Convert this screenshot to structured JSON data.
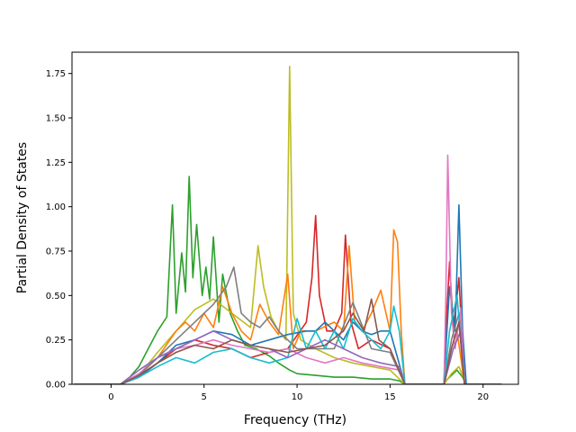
{
  "chart_data": {
    "type": "line",
    "title": "",
    "xlabel": "Frequency (THz)",
    "ylabel": "Partial Density of States",
    "xlim": [
      -2.1,
      21.9
    ],
    "ylim": [
      0,
      1.87
    ],
    "xticks": [
      0,
      5,
      10,
      15,
      20
    ],
    "yticks": [
      0.0,
      0.25,
      0.5,
      0.75,
      1.0,
      1.25,
      1.5,
      1.75
    ],
    "xtick_labels": [
      "0",
      "5",
      "10",
      "15",
      "20"
    ],
    "ytick_labels": [
      "0.00",
      "0.25",
      "0.50",
      "0.75",
      "1.00",
      "1.25",
      "1.50",
      "1.75"
    ],
    "grid": false,
    "legend": "none",
    "series": [
      {
        "color": "#2ca02c",
        "x": [
          -2,
          0.5,
          1,
          1.5,
          2,
          2.5,
          3,
          3.3,
          3.5,
          3.8,
          4,
          4.2,
          4.4,
          4.6,
          4.9,
          5.1,
          5.3,
          5.5,
          5.8,
          6,
          6.4,
          6.8,
          7.2,
          7.8,
          8.5,
          9,
          9.6,
          10,
          11,
          12,
          13,
          14,
          15,
          15.5,
          15.8,
          17.9,
          18,
          18.3,
          18.6,
          18.9,
          19.1,
          21
        ],
        "y": [
          0,
          0,
          0.04,
          0.1,
          0.2,
          0.3,
          0.38,
          1.01,
          0.4,
          0.74,
          0.52,
          1.17,
          0.6,
          0.9,
          0.5,
          0.66,
          0.48,
          0.83,
          0.35,
          0.62,
          0.4,
          0.3,
          0.22,
          0.2,
          0.16,
          0.12,
          0.08,
          0.06,
          0.05,
          0.04,
          0.04,
          0.03,
          0.03,
          0.02,
          0,
          0,
          0.02,
          0.05,
          0.08,
          0.04,
          0,
          0
        ]
      },
      {
        "color": "#bcbd22",
        "x": [
          -2,
          0.5,
          1.5,
          2.5,
          3.5,
          4.5,
          5.5,
          6.5,
          7.5,
          7.9,
          8.2,
          8.6,
          9,
          9.4,
          9.6,
          9.8,
          10.2,
          11,
          12,
          13,
          14,
          15,
          15.8,
          17.9,
          18.3,
          18.7,
          19.1,
          21
        ],
        "y": [
          0,
          0,
          0.05,
          0.18,
          0.3,
          0.42,
          0.48,
          0.4,
          0.32,
          0.78,
          0.55,
          0.38,
          0.3,
          0.25,
          1.79,
          0.4,
          0.25,
          0.2,
          0.15,
          0.12,
          0.1,
          0.08,
          0,
          0,
          0.06,
          0.1,
          0,
          0
        ]
      },
      {
        "color": "#d62728",
        "x": [
          -2,
          0.5,
          1.5,
          2.5,
          3.5,
          4.5,
          5.5,
          6.5,
          7.5,
          8.5,
          9.5,
          10.5,
          10.8,
          11,
          11.2,
          11.6,
          12,
          12.4,
          12.6,
          12.9,
          13.3,
          14,
          15,
          15.8,
          17.9,
          18,
          18.2,
          18.4,
          18.7,
          19,
          21
        ],
        "y": [
          0,
          0,
          0.04,
          0.12,
          0.2,
          0.25,
          0.22,
          0.2,
          0.15,
          0.18,
          0.2,
          0.35,
          0.6,
          0.95,
          0.5,
          0.3,
          0.3,
          0.4,
          0.84,
          0.35,
          0.2,
          0.25,
          0.2,
          0,
          0,
          0.3,
          0.69,
          0.3,
          0.6,
          0,
          0
        ]
      },
      {
        "color": "#ff7f0e",
        "x": [
          -2,
          0.5,
          1.5,
          2.5,
          3.5,
          4,
          4.5,
          5,
          5.5,
          6,
          6.5,
          7,
          7.5,
          8,
          8.5,
          9,
          9.5,
          9.8,
          10.2,
          11,
          12,
          12.5,
          12.8,
          13.1,
          13.5,
          14,
          14.5,
          15,
          15.2,
          15.4,
          15.6,
          15.8,
          17.9,
          18.3,
          18.6,
          19,
          21
        ],
        "y": [
          0,
          0,
          0.05,
          0.15,
          0.3,
          0.35,
          0.3,
          0.4,
          0.32,
          0.55,
          0.4,
          0.3,
          0.25,
          0.45,
          0.35,
          0.28,
          0.62,
          0.2,
          0.3,
          0.3,
          0.35,
          0.3,
          0.78,
          0.35,
          0.3,
          0.4,
          0.53,
          0.3,
          0.87,
          0.8,
          0.3,
          0,
          0,
          0.2,
          0.3,
          0,
          0
        ]
      },
      {
        "color": "#1f77b4",
        "x": [
          -2,
          0.5,
          1.5,
          2.5,
          3.5,
          4.5,
          5.5,
          6.5,
          7.5,
          8.5,
          9.5,
          10.5,
          11,
          11.5,
          12,
          12.5,
          13,
          13.5,
          14,
          14.5,
          15,
          15.8,
          17.9,
          18,
          18.2,
          18.5,
          18.7,
          18.9,
          19.1,
          21
        ],
        "y": [
          0,
          0,
          0.04,
          0.12,
          0.22,
          0.25,
          0.3,
          0.28,
          0.22,
          0.25,
          0.28,
          0.3,
          0.3,
          0.35,
          0.3,
          0.25,
          0.35,
          0.3,
          0.28,
          0.3,
          0.3,
          0,
          0,
          0.2,
          0.55,
          0.3,
          1.01,
          0.3,
          0,
          0
        ]
      },
      {
        "color": "#e377c2",
        "x": [
          -2,
          0.5,
          1.5,
          2.5,
          3.5,
          4.5,
          5.5,
          6.5,
          7.5,
          8.5,
          9.5,
          10.5,
          11.5,
          12.5,
          13.5,
          14.5,
          15.5,
          15.8,
          17.9,
          18,
          18.1,
          18.3,
          18.5,
          18.8,
          19,
          21
        ],
        "y": [
          0,
          0,
          0.06,
          0.15,
          0.2,
          0.22,
          0.25,
          0.22,
          0.2,
          0.18,
          0.2,
          0.15,
          0.12,
          0.15,
          0.12,
          0.1,
          0.08,
          0,
          0,
          0.5,
          1.29,
          0.4,
          0.2,
          0.43,
          0,
          0
        ]
      },
      {
        "color": "#7f7f7f",
        "x": [
          -2,
          0.5,
          1.5,
          2.5,
          3.5,
          4.5,
          5.5,
          6.2,
          6.6,
          7,
          7.5,
          8,
          8.5,
          9,
          9.5,
          10,
          11,
          12,
          13,
          14,
          15,
          15.8,
          17.9,
          18.3,
          18.7,
          19,
          21
        ],
        "y": [
          0,
          0,
          0.05,
          0.15,
          0.25,
          0.35,
          0.45,
          0.55,
          0.66,
          0.4,
          0.35,
          0.32,
          0.38,
          0.3,
          0.25,
          0.2,
          0.2,
          0.2,
          0.46,
          0.2,
          0.18,
          0,
          0,
          0.25,
          0.4,
          0,
          0
        ]
      },
      {
        "color": "#17becf",
        "x": [
          -2,
          0.5,
          1.5,
          2.5,
          3.5,
          4.5,
          5.5,
          6.5,
          7.5,
          8.5,
          9.5,
          10,
          10.5,
          11,
          11.5,
          12,
          12.5,
          13,
          13.5,
          14,
          14.5,
          15,
          15.2,
          15.5,
          15.8,
          17.9,
          18.2,
          18.6,
          19,
          21
        ],
        "y": [
          0,
          0,
          0.04,
          0.1,
          0.15,
          0.12,
          0.18,
          0.2,
          0.15,
          0.12,
          0.15,
          0.37,
          0.2,
          0.3,
          0.2,
          0.3,
          0.2,
          0.37,
          0.3,
          0.25,
          0.2,
          0.3,
          0.44,
          0.3,
          0,
          0,
          0.3,
          0.5,
          0,
          0
        ]
      },
      {
        "color": "#9467bd",
        "x": [
          -2,
          0.5,
          1.5,
          2.5,
          3.5,
          4.5,
          5.5,
          6.5,
          7.5,
          8.5,
          9.5,
          10.5,
          11.5,
          12.5,
          13.5,
          14.5,
          15.5,
          15.8,
          17.9,
          18.4,
          18.8,
          19,
          21
        ],
        "y": [
          0,
          0,
          0.08,
          0.15,
          0.2,
          0.25,
          0.3,
          0.25,
          0.22,
          0.2,
          0.15,
          0.2,
          0.25,
          0.2,
          0.15,
          0.12,
          0.1,
          0,
          0,
          0.2,
          0.3,
          0,
          0
        ]
      },
      {
        "color": "#8c564b",
        "x": [
          -2,
          0.5,
          1.5,
          2.5,
          3.5,
          4.5,
          5.5,
          6.5,
          7.5,
          8.5,
          9.5,
          10.5,
          11.5,
          12.5,
          13,
          13.6,
          14,
          14.4,
          15,
          15.8,
          17.9,
          18.3,
          18.7,
          19,
          21
        ],
        "y": [
          0,
          0,
          0.05,
          0.12,
          0.18,
          0.22,
          0.2,
          0.25,
          0.22,
          0.2,
          0.18,
          0.2,
          0.22,
          0.3,
          0.4,
          0.3,
          0.48,
          0.25,
          0.2,
          0,
          0,
          0.2,
          0.35,
          0,
          0
        ]
      }
    ]
  }
}
